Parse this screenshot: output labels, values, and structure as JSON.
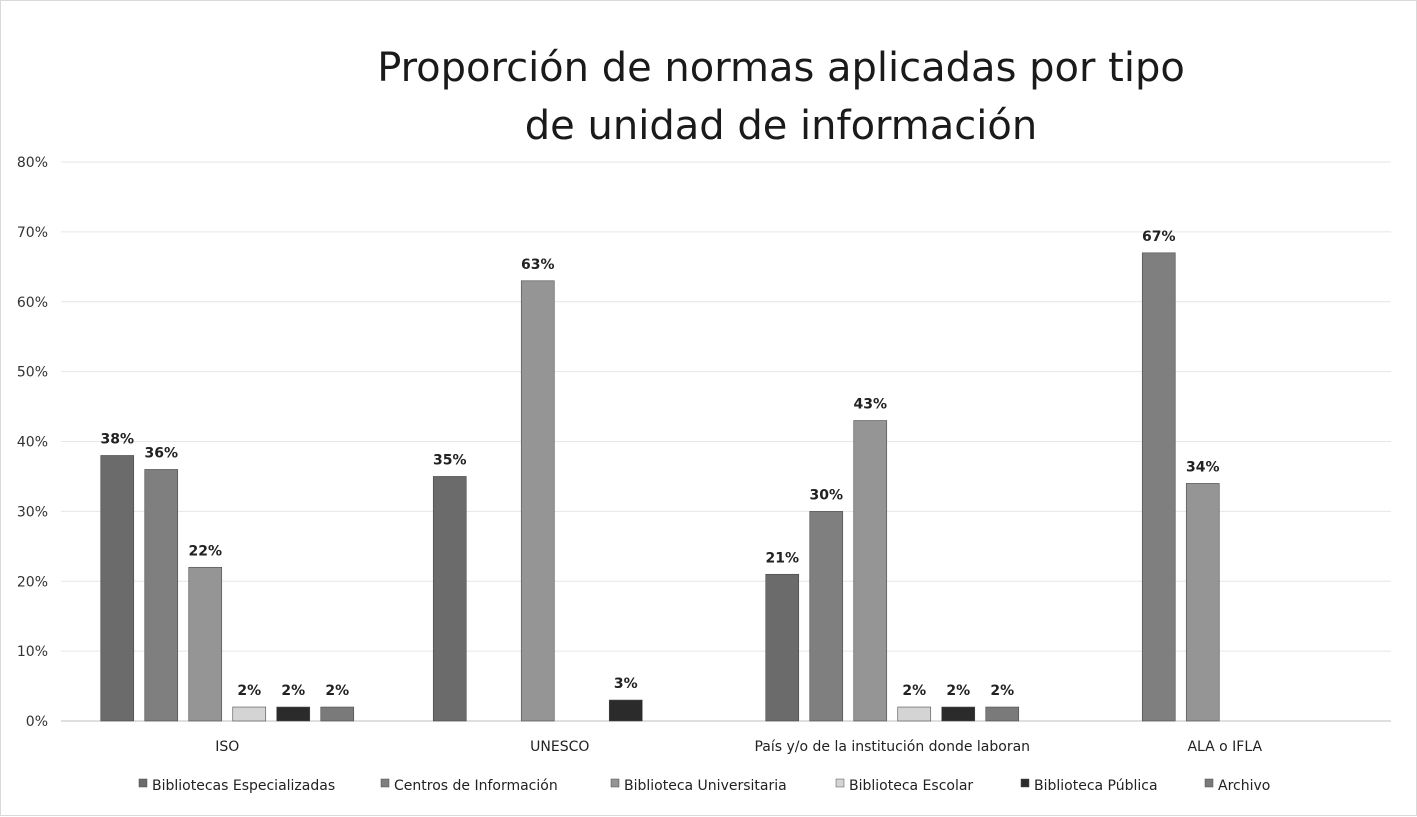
{
  "chart_data": {
    "type": "bar",
    "title_lines": [
      "Proporción de normas aplicadas por tipo",
      "de unidad de información"
    ],
    "categories": [
      "ISO",
      "UNESCO",
      "País y/o de la institución donde laboran",
      "ALA o IFLA"
    ],
    "ylim": [
      0,
      80
    ],
    "yticks": [
      "0%",
      "10%",
      "20%",
      "30%",
      "40%",
      "50%",
      "60%",
      "70%",
      "80%"
    ],
    "grid": true,
    "legend_position": "bottom",
    "series": [
      {
        "name": "Bibliotecas Especializadas",
        "color": "#6b6b6b",
        "values": [
          38,
          35,
          21,
          null
        ],
        "labels": [
          "38%",
          "35%",
          "21%",
          ""
        ]
      },
      {
        "name": "Centros de Información",
        "color": "#7f7f7f",
        "values": [
          36,
          null,
          30,
          67
        ],
        "labels": [
          "36%",
          "",
          "30%",
          "67%"
        ]
      },
      {
        "name": "Biblioteca Universitaria",
        "color": "#959595",
        "values": [
          22,
          63,
          43,
          34
        ],
        "labels": [
          "22%",
          "63%",
          "43%",
          "34%"
        ]
      },
      {
        "name": "Biblioteca Escolar",
        "color": "#d4d4d4",
        "values": [
          2,
          null,
          2,
          null
        ],
        "labels": [
          "2%",
          "",
          "2%",
          ""
        ]
      },
      {
        "name": "Biblioteca Pública",
        "color": "#2b2b2b",
        "values": [
          2,
          3,
          2,
          null
        ],
        "labels": [
          "2%",
          "3%",
          "2%",
          ""
        ]
      },
      {
        "name": "Archivo",
        "color": "#7a7a7a",
        "values": [
          2,
          null,
          2,
          null
        ],
        "labels": [
          "2%",
          "",
          "2%",
          ""
        ]
      }
    ]
  }
}
